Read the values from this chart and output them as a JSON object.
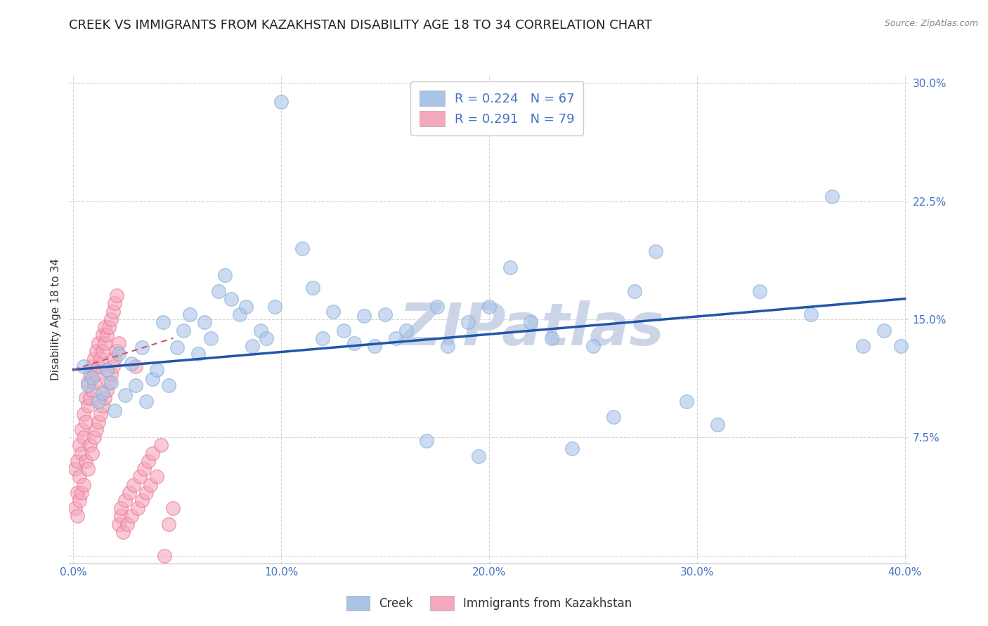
{
  "title": "CREEK VS IMMIGRANTS FROM KAZAKHSTAN DISABILITY AGE 18 TO 34 CORRELATION CHART",
  "source": "Source: ZipAtlas.com",
  "ylabel": "Disability Age 18 to 34",
  "watermark": "ZIPatlas",
  "xlim": [
    -0.002,
    0.402
  ],
  "ylim": [
    -0.005,
    0.305
  ],
  "xticks": [
    0.0,
    0.1,
    0.2,
    0.3,
    0.4
  ],
  "xticklabels": [
    "0.0%",
    "10.0%",
    "20.0%",
    "30.0%",
    "40.0%"
  ],
  "yticks": [
    0.0,
    0.075,
    0.15,
    0.225,
    0.3
  ],
  "yticklabels": [
    "",
    "7.5%",
    "15.0%",
    "22.5%",
    "30.0%"
  ],
  "legend_R_N": [
    {
      "label": "Creek",
      "color": "#aac4e8",
      "R": "0.224",
      "N": "67"
    },
    {
      "label": "Immigrants from Kazakhstan",
      "color": "#f5a8bc",
      "R": "0.291",
      "N": "79"
    }
  ],
  "creek_scatter_x": [
    0.005,
    0.007,
    0.009,
    0.012,
    0.014,
    0.016,
    0.018,
    0.02,
    0.022,
    0.025,
    0.028,
    0.03,
    0.033,
    0.035,
    0.038,
    0.04,
    0.043,
    0.046,
    0.05,
    0.053,
    0.056,
    0.06,
    0.063,
    0.066,
    0.07,
    0.073,
    0.076,
    0.08,
    0.083,
    0.086,
    0.09,
    0.093,
    0.097,
    0.1,
    0.11,
    0.115,
    0.12,
    0.125,
    0.13,
    0.135,
    0.14,
    0.145,
    0.15,
    0.155,
    0.16,
    0.17,
    0.175,
    0.18,
    0.19,
    0.195,
    0.2,
    0.21,
    0.22,
    0.23,
    0.24,
    0.25,
    0.26,
    0.27,
    0.28,
    0.295,
    0.31,
    0.33,
    0.355,
    0.365,
    0.38,
    0.39,
    0.398
  ],
  "creek_scatter_y": [
    0.12,
    0.108,
    0.113,
    0.098,
    0.103,
    0.118,
    0.11,
    0.092,
    0.128,
    0.102,
    0.122,
    0.108,
    0.132,
    0.098,
    0.112,
    0.118,
    0.148,
    0.108,
    0.132,
    0.143,
    0.153,
    0.128,
    0.148,
    0.138,
    0.168,
    0.178,
    0.163,
    0.153,
    0.158,
    0.133,
    0.143,
    0.138,
    0.158,
    0.288,
    0.195,
    0.17,
    0.138,
    0.155,
    0.143,
    0.135,
    0.152,
    0.133,
    0.153,
    0.138,
    0.143,
    0.073,
    0.158,
    0.133,
    0.148,
    0.063,
    0.158,
    0.183,
    0.148,
    0.138,
    0.068,
    0.133,
    0.088,
    0.168,
    0.193,
    0.098,
    0.083,
    0.168,
    0.153,
    0.228,
    0.133,
    0.143,
    0.133
  ],
  "kazakhstan_scatter_x": [
    0.001,
    0.001,
    0.002,
    0.002,
    0.002,
    0.003,
    0.003,
    0.003,
    0.004,
    0.004,
    0.004,
    0.005,
    0.005,
    0.005,
    0.006,
    0.006,
    0.006,
    0.007,
    0.007,
    0.007,
    0.008,
    0.008,
    0.008,
    0.009,
    0.009,
    0.009,
    0.01,
    0.01,
    0.01,
    0.011,
    0.011,
    0.011,
    0.012,
    0.012,
    0.012,
    0.013,
    0.013,
    0.014,
    0.014,
    0.014,
    0.015,
    0.015,
    0.015,
    0.016,
    0.016,
    0.017,
    0.017,
    0.018,
    0.018,
    0.019,
    0.019,
    0.02,
    0.02,
    0.021,
    0.021,
    0.022,
    0.022,
    0.023,
    0.023,
    0.024,
    0.025,
    0.026,
    0.027,
    0.028,
    0.029,
    0.03,
    0.031,
    0.032,
    0.033,
    0.034,
    0.035,
    0.036,
    0.037,
    0.038,
    0.04,
    0.042,
    0.044,
    0.046,
    0.048
  ],
  "kazakhstan_scatter_y": [
    0.03,
    0.055,
    0.025,
    0.06,
    0.04,
    0.035,
    0.07,
    0.05,
    0.04,
    0.065,
    0.08,
    0.045,
    0.075,
    0.09,
    0.06,
    0.085,
    0.1,
    0.055,
    0.095,
    0.11,
    0.07,
    0.1,
    0.115,
    0.065,
    0.105,
    0.12,
    0.075,
    0.11,
    0.125,
    0.08,
    0.115,
    0.13,
    0.085,
    0.12,
    0.135,
    0.09,
    0.125,
    0.095,
    0.13,
    0.14,
    0.1,
    0.135,
    0.145,
    0.105,
    0.14,
    0.11,
    0.145,
    0.115,
    0.15,
    0.12,
    0.155,
    0.125,
    0.16,
    0.13,
    0.165,
    0.135,
    0.02,
    0.025,
    0.03,
    0.015,
    0.035,
    0.02,
    0.04,
    0.025,
    0.045,
    0.12,
    0.03,
    0.05,
    0.035,
    0.055,
    0.04,
    0.06,
    0.045,
    0.065,
    0.05,
    0.07,
    0.0,
    0.02,
    0.03
  ],
  "creek_trend_x": [
    0.0,
    0.4
  ],
  "creek_trend_y": [
    0.118,
    0.163
  ],
  "kazakhstan_trend_x": [
    0.0,
    0.048
  ],
  "kazakhstan_trend_y": [
    0.118,
    0.138
  ],
  "creek_scatter_color": "#aac4e8",
  "creek_scatter_edgecolor": "#7badd4",
  "kazakhstan_scatter_color": "#f5a8bc",
  "kazakhstan_scatter_edgecolor": "#e8708f",
  "creek_line_color": "#2255aa",
  "kazakhstan_line_color": "#d05070",
  "background_color": "#ffffff",
  "grid_color": "#cccccc",
  "tick_color": "#4472c4",
  "title_fontsize": 13,
  "axis_label_fontsize": 11,
  "tick_fontsize": 11,
  "watermark_color": "#ccd5e8",
  "watermark_fontsize": 60
}
